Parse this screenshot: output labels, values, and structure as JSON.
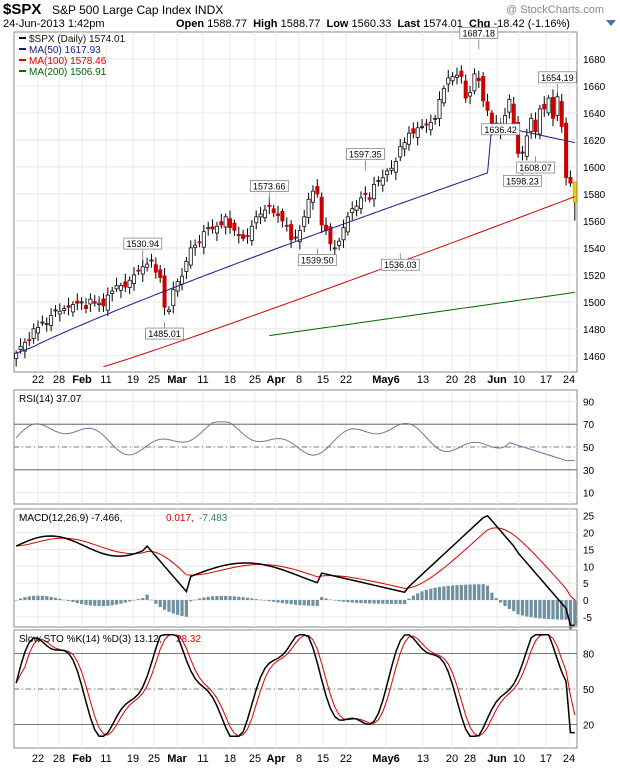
{
  "header": {
    "symbol": "$SPX",
    "name": "S&P 500 Large Cap Index",
    "exchange": "INDX",
    "date": "24-Jun-2013 1:42pm",
    "open_label": "Open",
    "open": "1588.77",
    "high_label": "High",
    "high": "1588.77",
    "low_label": "Low",
    "low": "1560.33",
    "last_label": "Last",
    "last": "1574.01",
    "chg_label": "Chg",
    "chg": "-18.42 (-1.16%)",
    "watermark": "@ StockCharts.com"
  },
  "colors": {
    "up": "#111111",
    "down": "#cc0000",
    "today": "#f0d000",
    "ma50": "#1a1a8c",
    "ma100": "#dd0000",
    "ma200": "#006600",
    "grid": "#e8e8e8",
    "hist": "#7090a0"
  },
  "chart_data": [
    {
      "type": "candlestick",
      "legend": [
        {
          "label": "$SPX (Daily) 1574.01",
          "color": "#111111"
        },
        {
          "label": "MA(50) 1617.93",
          "color": "#1a1a8c"
        },
        {
          "label": "MA(100) 1578.46",
          "color": "#dd0000"
        },
        {
          "label": "MA(200) 1506.91",
          "color": "#006600"
        }
      ],
      "ylim": [
        1448,
        1700
      ],
      "yticks": [
        1460,
        1480,
        1500,
        1520,
        1540,
        1560,
        1580,
        1600,
        1620,
        1640,
        1660,
        1680
      ],
      "closes": [
        1462,
        1467,
        1470,
        1472,
        1480,
        1481,
        1485,
        1484,
        1490,
        1494,
        1493,
        1495,
        1496,
        1498,
        1499,
        1500,
        1495,
        1502,
        1499,
        1499,
        1497,
        1505,
        1508,
        1512,
        1512,
        1511,
        1516,
        1520,
        1523,
        1526,
        1528,
        1531,
        1522,
        1518,
        1496,
        1494,
        1509,
        1515,
        1519,
        1530,
        1540,
        1542,
        1544,
        1552,
        1555,
        1554,
        1556,
        1557,
        1563,
        1555,
        1553,
        1549,
        1547,
        1549,
        1556,
        1563,
        1565,
        1568,
        1571,
        1566,
        1564,
        1560,
        1556,
        1546,
        1548,
        1553,
        1563,
        1576,
        1582,
        1580,
        1557,
        1553,
        1543,
        1540,
        1545,
        1555,
        1563,
        1569,
        1571,
        1577,
        1580,
        1576,
        1587,
        1590,
        1592,
        1597,
        1599,
        1604,
        1615,
        1618,
        1625,
        1625,
        1629,
        1630,
        1631,
        1633,
        1636,
        1650,
        1658,
        1666,
        1667,
        1668,
        1667,
        1651,
        1655,
        1669,
        1664,
        1649,
        1642,
        1629,
        1629,
        1631,
        1638,
        1650,
        1631,
        1610,
        1611,
        1623,
        1636,
        1626,
        1643,
        1643,
        1651,
        1636,
        1652,
        1630,
        1592,
        1588,
        1574
      ],
      "ma50_range": [
        1460,
        1618
      ],
      "ma100_range": [
        1452,
        1578
      ],
      "ma200_range": [
        1475,
        1507
      ],
      "annotations": [
        {
          "text": "1485.01",
          "i": 34,
          "value": 1485.01,
          "pos": "below"
        },
        {
          "text": "1530.94",
          "i": 29,
          "value": 1530.94,
          "pos": "above"
        },
        {
          "text": "1573.66",
          "i": 58,
          "value": 1573.66,
          "pos": "above"
        },
        {
          "text": "1539.50",
          "i": 69,
          "value": 1539.5,
          "pos": "below"
        },
        {
          "text": "1597.35",
          "i": 80,
          "value": 1597.35,
          "pos": "above"
        },
        {
          "text": "1536.03",
          "i": 88,
          "value": 1536.03,
          "pos": "below"
        },
        {
          "text": "1687.18",
          "i": 106,
          "value": 1687.18,
          "pos": "above"
        },
        {
          "text": "1636.42",
          "i": 111,
          "value": 1636.42,
          "pos": "below"
        },
        {
          "text": "1598.23",
          "i": 116,
          "value": 1598.23,
          "pos": "below"
        },
        {
          "text": "1608.07",
          "i": 119,
          "value": 1608.07,
          "pos": "below"
        },
        {
          "text": "1654.19",
          "i": 124,
          "value": 1654.19,
          "pos": "above"
        }
      ]
    },
    {
      "type": "line",
      "legend": "RSI(14) 37.07",
      "ylim": [
        0,
        100
      ],
      "yticks": [
        10,
        30,
        50,
        70,
        90
      ],
      "levels": [
        70,
        50,
        30
      ]
    },
    {
      "type": "line",
      "legend_main": "MACD(12,26,9) -7.466,",
      "legend_sig": "0.017,",
      "legend_hist": "-7.483",
      "ylim": [
        -8,
        27
      ],
      "yticks": [
        -5,
        0,
        5,
        10,
        15,
        20,
        25
      ]
    },
    {
      "type": "line",
      "legend_main": "Slow STO %K(14) %D(3) 13.12,",
      "legend_sig": "28.32",
      "ylim": [
        0,
        100
      ],
      "yticks": [
        20,
        50,
        80
      ],
      "levels": [
        80,
        50,
        20
      ]
    }
  ],
  "xaxis": {
    "labels": [
      "22",
      "28",
      "Feb",
      "11",
      "19",
      "25",
      "Mar",
      "11",
      "18",
      "25",
      "Apr",
      "8",
      "15",
      "22",
      "May6",
      "13",
      "20",
      "28",
      "Jun",
      "10",
      "17",
      "24"
    ],
    "positions": [
      38,
      59,
      82,
      106,
      133,
      154,
      177,
      203,
      230,
      255,
      276,
      299,
      323,
      346,
      386,
      423,
      452,
      470,
      497,
      519,
      546,
      569
    ]
  }
}
